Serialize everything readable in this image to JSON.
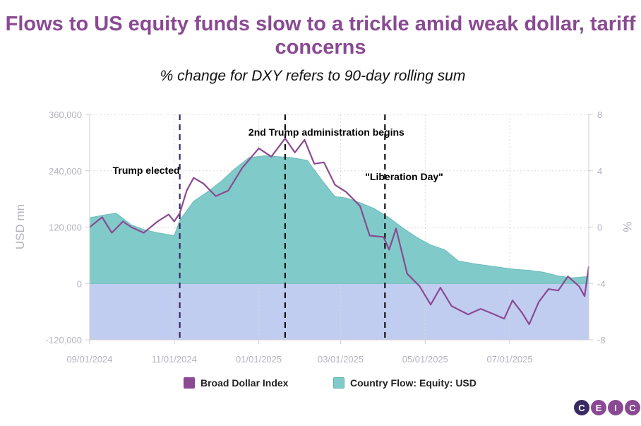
{
  "chart_data": {
    "type": "line+area",
    "title": "Flows to US equity funds slow to a trickle amid weak dollar, tariff concerns",
    "subtitle": "% change for DXY refers to 90-day rolling sum",
    "y_left": {
      "label": "USD mn",
      "min": -120000,
      "max": 360000,
      "ticks": [
        -120000,
        0,
        120000,
        240000,
        360000
      ],
      "tick_labels": [
        "-120,000",
        "0",
        "120,000",
        "240,000",
        "360,000"
      ]
    },
    "y_right": {
      "label": "%",
      "min": -8,
      "max": 8,
      "ticks": [
        -8,
        -4,
        0,
        4,
        8
      ],
      "tick_labels": [
        "-8",
        "-4",
        "0",
        "4",
        "8"
      ]
    },
    "x_axis": {
      "start": "2024-09-01",
      "end": "2025-08-27",
      "ticks": [
        "2024-09-01",
        "2024-11-01",
        "2025-01-01",
        "2025-03-01",
        "2025-05-01",
        "2025-07-01"
      ],
      "tick_labels": [
        "09/01/2024",
        "11/01/2024",
        "01/01/2025",
        "03/01/2025",
        "05/01/2025",
        "07/01/2025"
      ]
    },
    "grid": true,
    "annotations": [
      {
        "date": "2024-11-05",
        "text": "Trump elected"
      },
      {
        "date": "2025-01-20",
        "text": "2nd Trump administration begins"
      },
      {
        "date": "2025-04-02",
        "text": "\"Liberation Day\""
      }
    ],
    "series": [
      {
        "name": "Country Flow: Equity: USD",
        "axis": "left",
        "type": "area",
        "color": "#80cbc9",
        "points": [
          [
            "2024-09-01",
            140000
          ],
          [
            "2024-09-10",
            145000
          ],
          [
            "2024-09-20",
            150000
          ],
          [
            "2024-10-01",
            125000
          ],
          [
            "2024-10-10",
            115000
          ],
          [
            "2024-10-20",
            108000
          ],
          [
            "2024-11-01",
            102000
          ],
          [
            "2024-11-05",
            135000
          ],
          [
            "2024-11-15",
            175000
          ],
          [
            "2024-11-25",
            195000
          ],
          [
            "2024-12-05",
            218000
          ],
          [
            "2024-12-15",
            245000
          ],
          [
            "2024-12-25",
            268000
          ],
          [
            "2025-01-05",
            272000
          ],
          [
            "2025-01-15",
            270000
          ],
          [
            "2025-01-25",
            268000
          ],
          [
            "2025-02-05",
            262000
          ],
          [
            "2025-02-15",
            222000
          ],
          [
            "2025-02-25",
            185000
          ],
          [
            "2025-03-05",
            182000
          ],
          [
            "2025-03-15",
            172000
          ],
          [
            "2025-03-25",
            160000
          ],
          [
            "2025-04-05",
            140000
          ],
          [
            "2025-04-15",
            118000
          ],
          [
            "2025-04-25",
            98000
          ],
          [
            "2025-05-05",
            82000
          ],
          [
            "2025-05-15",
            72000
          ],
          [
            "2025-05-25",
            48000
          ],
          [
            "2025-06-05",
            42000
          ],
          [
            "2025-06-15",
            38000
          ],
          [
            "2025-06-25",
            34000
          ],
          [
            "2025-07-05",
            30000
          ],
          [
            "2025-07-15",
            28000
          ],
          [
            "2025-07-25",
            24000
          ],
          [
            "2025-08-05",
            16000
          ],
          [
            "2025-08-15",
            12000
          ],
          [
            "2025-08-27",
            15000
          ]
        ]
      },
      {
        "name": "Broad Dollar Index",
        "axis": "right",
        "type": "line",
        "color": "#8b4a92",
        "points": [
          [
            "2024-09-01",
            0.0
          ],
          [
            "2024-09-10",
            0.7
          ],
          [
            "2024-09-17",
            -0.4
          ],
          [
            "2024-09-25",
            0.4
          ],
          [
            "2024-10-01",
            0.0
          ],
          [
            "2024-10-10",
            -0.4
          ],
          [
            "2024-10-20",
            0.4
          ],
          [
            "2024-10-28",
            0.9
          ],
          [
            "2024-11-01",
            0.4
          ],
          [
            "2024-11-05",
            1.0
          ],
          [
            "2024-11-10",
            2.6
          ],
          [
            "2024-11-15",
            3.5
          ],
          [
            "2024-11-22",
            3.1
          ],
          [
            "2024-12-01",
            2.2
          ],
          [
            "2024-12-10",
            2.6
          ],
          [
            "2024-12-20",
            4.2
          ],
          [
            "2025-01-01",
            5.6
          ],
          [
            "2025-01-10",
            5.0
          ],
          [
            "2025-01-20",
            6.3
          ],
          [
            "2025-01-27",
            5.3
          ],
          [
            "2025-02-03",
            6.2
          ],
          [
            "2025-02-10",
            4.5
          ],
          [
            "2025-02-17",
            4.6
          ],
          [
            "2025-02-25",
            3.0
          ],
          [
            "2025-03-05",
            2.5
          ],
          [
            "2025-03-15",
            1.5
          ],
          [
            "2025-03-22",
            -0.6
          ],
          [
            "2025-04-01",
            -0.7
          ],
          [
            "2025-04-05",
            -1.6
          ],
          [
            "2025-04-10",
            -0.1
          ],
          [
            "2025-04-18",
            -3.3
          ],
          [
            "2025-04-27",
            -4.2
          ],
          [
            "2025-05-05",
            -5.5
          ],
          [
            "2025-05-12",
            -4.3
          ],
          [
            "2025-05-20",
            -5.6
          ],
          [
            "2025-06-01",
            -6.2
          ],
          [
            "2025-06-10",
            -5.8
          ],
          [
            "2025-06-20",
            -6.2
          ],
          [
            "2025-06-27",
            -6.5
          ],
          [
            "2025-07-03",
            -5.2
          ],
          [
            "2025-07-10",
            -6.1
          ],
          [
            "2025-07-15",
            -6.9
          ],
          [
            "2025-07-22",
            -5.3
          ],
          [
            "2025-07-29",
            -4.4
          ],
          [
            "2025-08-05",
            -4.5
          ],
          [
            "2025-08-12",
            -3.5
          ],
          [
            "2025-08-20",
            -4.2
          ],
          [
            "2025-08-24",
            -4.9
          ],
          [
            "2025-08-27",
            -2.8
          ]
        ]
      }
    ]
  },
  "logo": {
    "letters": [
      "C",
      "E",
      "I",
      "C"
    ]
  }
}
